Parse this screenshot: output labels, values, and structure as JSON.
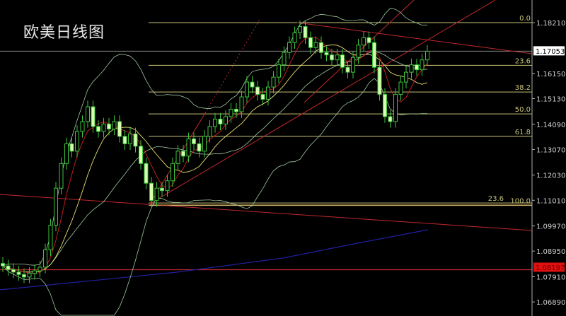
{
  "chart_data": {
    "type": "candlestick",
    "title": "欧美日线图",
    "ylim": [
      1.064,
      1.188
    ],
    "y_ticks": [
      "1.18210",
      "1.16150",
      "1.15130",
      "1.14090",
      "1.13070",
      "1.12030",
      "1.11010",
      "1.09970",
      "1.08950",
      "1.07910",
      "1.06890"
    ],
    "current_price": "1.17053",
    "marked_price": "1.08197",
    "close": [
      1.0835,
      1.082,
      1.081,
      1.08,
      1.079,
      1.0805,
      1.0815,
      1.083,
      1.09,
      1.1,
      1.115,
      1.125,
      1.133,
      1.13,
      1.138,
      1.142,
      1.148,
      1.14,
      1.138,
      1.141,
      1.139,
      1.142,
      1.136,
      1.133,
      1.137,
      1.132,
      1.125,
      1.117,
      1.11,
      1.115,
      1.114,
      1.118,
      1.125,
      1.13,
      1.128,
      1.135,
      1.133,
      1.13,
      1.136,
      1.14,
      1.143,
      1.141,
      1.144,
      1.147,
      1.146,
      1.152,
      1.158,
      1.156,
      1.153,
      1.151,
      1.156,
      1.16,
      1.165,
      1.17,
      1.174,
      1.178,
      1.1805,
      1.176,
      1.172,
      1.174,
      1.17,
      1.169,
      1.167,
      1.169,
      1.164,
      1.162,
      1.168,
      1.173,
      1.176,
      1.174,
      1.164,
      1.153,
      1.144,
      1.142,
      1.153,
      1.158,
      1.162,
      1.165,
      1.163,
      1.167,
      1.1705
    ],
    "fibonacci": [
      {
        "label": "0.0",
        "price": 1.1821
      },
      {
        "label": "23.6",
        "price": 1.1648
      },
      {
        "label": "38.2",
        "price": 1.154
      },
      {
        "label": "50.0",
        "price": 1.1451
      },
      {
        "label": "61.8",
        "price": 1.136
      },
      {
        "label": "23.6",
        "price": 1.109
      },
      {
        "label": "100.0",
        "price": 1.108
      }
    ],
    "colors": {
      "candle": "#3cc43c",
      "candle_fill": "#d8ffb0",
      "fib": "#c8c47a",
      "trend": "#c0282c",
      "ma_long": "#2020a0",
      "band": "#a0c8a0",
      "ma_fast": "#d02020",
      "ma_mid": "#e8e070",
      "axis": "#aaaaaa",
      "price_tag_bg": "#ffffff",
      "marked_tag_bg": "#e01010"
    }
  }
}
